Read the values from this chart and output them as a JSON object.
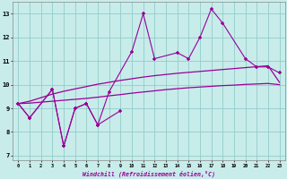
{
  "background_color": "#c8ecea",
  "grid_color": "#90ccca",
  "line_color": "#990099",
  "ylim": [
    6.8,
    13.5
  ],
  "xlim": [
    -0.5,
    23.5
  ],
  "yticks": [
    7,
    8,
    9,
    10,
    11,
    12,
    13
  ],
  "xticks": [
    0,
    1,
    2,
    3,
    4,
    5,
    6,
    7,
    8,
    9,
    10,
    11,
    12,
    13,
    14,
    15,
    16,
    17,
    18,
    19,
    20,
    21,
    22,
    23
  ],
  "xlabel": "Windchill (Refroidissement éolien,°C)",
  "jagged1_x": [
    0,
    1,
    3,
    4,
    5,
    6,
    7,
    8,
    10,
    11,
    12,
    14,
    15,
    16,
    17,
    18,
    20,
    21,
    22,
    23
  ],
  "jagged1_y": [
    9.2,
    8.6,
    9.8,
    7.4,
    9.0,
    9.2,
    8.3,
    9.7,
    11.4,
    13.0,
    11.1,
    11.35,
    11.1,
    12.0,
    13.2,
    12.6,
    11.1,
    10.75,
    10.75,
    10.5
  ],
  "jagged2_x": [
    0,
    1,
    3,
    4,
    5,
    6,
    7,
    9
  ],
  "jagged2_y": [
    9.2,
    8.6,
    9.8,
    7.4,
    9.0,
    9.2,
    8.3,
    8.9
  ],
  "smooth_upper_x": [
    0,
    1,
    2,
    3,
    4,
    5,
    6,
    7,
    8,
    9,
    10,
    11,
    12,
    13,
    14,
    15,
    16,
    17,
    18,
    19,
    20,
    21,
    22,
    23
  ],
  "smooth_upper_y": [
    9.2,
    9.3,
    9.45,
    9.6,
    9.72,
    9.82,
    9.92,
    10.02,
    10.1,
    10.18,
    10.25,
    10.32,
    10.38,
    10.43,
    10.48,
    10.52,
    10.56,
    10.6,
    10.64,
    10.68,
    10.72,
    10.76,
    10.8,
    10.1
  ],
  "smooth_lower_x": [
    0,
    1,
    2,
    3,
    4,
    5,
    6,
    7,
    8,
    9,
    10,
    11,
    12,
    13,
    14,
    15,
    16,
    17,
    18,
    19,
    20,
    21,
    22,
    23
  ],
  "smooth_lower_y": [
    9.2,
    9.22,
    9.26,
    9.3,
    9.34,
    9.38,
    9.42,
    9.47,
    9.53,
    9.58,
    9.64,
    9.69,
    9.74,
    9.79,
    9.83,
    9.87,
    9.9,
    9.93,
    9.96,
    9.98,
    10.01,
    10.03,
    10.05,
    10.0
  ]
}
